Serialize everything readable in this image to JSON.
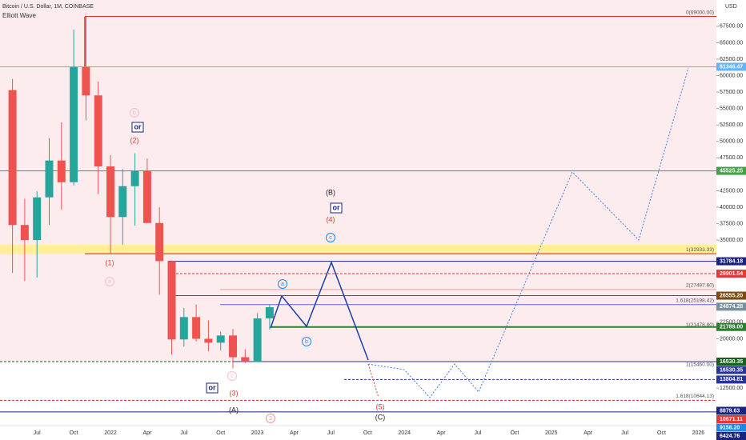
{
  "chart_data": {
    "type": "candlestick",
    "title": "Bitcoin / U.S. Dollar, 1M, COINBASE",
    "subtitle": "Elliott Wave",
    "y_unit": "USD",
    "up_color": "#26a69a",
    "down_color": "#ef5350",
    "categories": [
      null,
      null,
      "Jul",
      null,
      null,
      "Oct",
      null,
      null,
      "2022",
      null,
      null,
      "Apr",
      null,
      null,
      "Jul",
      null,
      null,
      "Oct",
      null,
      null,
      "2023",
      null,
      null,
      "Apr",
      null,
      null,
      "Jul",
      null,
      null,
      "Oct",
      null,
      null,
      "2024",
      null,
      null,
      "Apr",
      null,
      null,
      "Jul",
      null,
      null,
      "Oct",
      null,
      null,
      "2025",
      null,
      null,
      "Apr",
      null,
      null,
      "Jul",
      null,
      null,
      "Oct",
      null,
      null,
      "2026",
      null
    ],
    "open": [
      57800,
      37300,
      35000,
      41500,
      47100,
      43800,
      61300,
      57000,
      46200,
      38500,
      43200,
      45500,
      37600,
      31800,
      19900,
      23300,
      20000,
      19400,
      20500,
      17200,
      16500,
      23100,
      null,
      null,
      null,
      null,
      null,
      null,
      null,
      null,
      null,
      null,
      null,
      null,
      null,
      null,
      null,
      null,
      null,
      null,
      null,
      null,
      null,
      null,
      null,
      null,
      null,
      null,
      null,
      null,
      null,
      null,
      null,
      null,
      null,
      null,
      null,
      null
    ],
    "high": [
      59500,
      41300,
      42400,
      50500,
      52900,
      67000,
      69000,
      59100,
      47900,
      45800,
      48200,
      47400,
      40000,
      31900,
      24700,
      25200,
      22800,
      21100,
      21500,
      18400,
      23900,
      25200,
      null,
      null,
      null,
      null,
      null,
      null,
      null,
      null,
      null,
      null,
      null,
      null,
      null,
      null,
      null,
      null,
      null,
      null,
      null,
      null,
      null,
      null,
      null,
      null,
      null,
      null,
      null,
      null,
      null,
      null,
      null,
      null,
      null,
      null,
      null,
      null
    ],
    "low": [
      30000,
      28800,
      29300,
      37300,
      39600,
      43300,
      53200,
      42000,
      32900,
      34300,
      37200,
      37700,
      26700,
      17600,
      18800,
      19600,
      18100,
      18200,
      15500,
      16300,
      16500,
      21400,
      null,
      null,
      null,
      null,
      null,
      null,
      null,
      null,
      null,
      null,
      null,
      null,
      null,
      null,
      null,
      null,
      null,
      null,
      null,
      null,
      null,
      null,
      null,
      null,
      null,
      null,
      null,
      null,
      null,
      null,
      null,
      null,
      null,
      null,
      null,
      null
    ],
    "close": [
      37300,
      35000,
      41500,
      47100,
      43800,
      61300,
      57000,
      46200,
      38500,
      43200,
      45500,
      37600,
      31800,
      19900,
      23300,
      20000,
      19400,
      20500,
      17200,
      16500,
      23100,
      24800,
      null,
      null,
      null,
      null,
      null,
      null,
      null,
      null,
      null,
      null,
      null,
      null,
      null,
      null,
      null,
      null,
      null,
      null,
      null,
      null,
      null,
      null,
      null,
      null,
      null,
      null,
      null,
      null,
      null,
      null,
      null,
      null,
      null,
      null,
      null,
      null
    ],
    "ylim": [
      6800,
      71500
    ],
    "yticks": [
      {
        "value": 67500,
        "label": "67500.00"
      },
      {
        "value": 65000,
        "label": "65000.00"
      },
      {
        "value": 62500,
        "label": "62500.00"
      },
      {
        "value": 60000,
        "label": "60000.00"
      },
      {
        "value": 57500,
        "label": "57500.00"
      },
      {
        "value": 55000,
        "label": "55000.00"
      },
      {
        "value": 52500,
        "label": "52500.00"
      },
      {
        "value": 50000,
        "label": "50000.00"
      },
      {
        "value": 47500,
        "label": "47500.00"
      },
      {
        "value": 42500,
        "label": "42500.00"
      },
      {
        "value": 40000,
        "label": "40000.00"
      },
      {
        "value": 37500,
        "label": "37500.00"
      },
      {
        "value": 35000,
        "label": "35000.00"
      },
      {
        "value": 22500,
        "label": "22500.00"
      },
      {
        "value": 20000,
        "label": "20000.00"
      },
      {
        "value": 12500,
        "label": "12500.00"
      }
    ],
    "levels": [
      {
        "value": 69000,
        "color": "#d32f2f"
      },
      {
        "value": 61346.47,
        "label": "61346.47",
        "color": "#64b5f6"
      },
      {
        "value": 45525.25,
        "label": "45525.25",
        "color": "#43a047"
      },
      {
        "value": 32933.33,
        "color": "#c62828"
      },
      {
        "value": 31784.18,
        "label": "31784.18",
        "color": "#1a237e"
      },
      {
        "value": 29901.54,
        "label": "29901.54",
        "color": "#e53935",
        "dashed": true
      },
      {
        "value": 27497.6,
        "color": "#ef9a9a"
      },
      {
        "value": 26555.2,
        "label": "26555.20",
        "color": "#7b4a12"
      },
      {
        "value": 25198.42,
        "color": "#5c6bc0"
      },
      {
        "value": 24874.28,
        "label": "24874.28",
        "color": "#78909c"
      },
      {
        "value": 21789,
        "label": "21789.00",
        "color": "#2e7d32"
      },
      {
        "value": 16530.35,
        "label": "16530.35",
        "color": "#1b5e20",
        "dashed": true
      },
      {
        "value": 16530.35,
        "label": "16530.35",
        "color": "#283593"
      },
      {
        "value": 13804.81,
        "label": "13804.81",
        "color": "#283593",
        "dashed": true
      },
      {
        "value": 10644.13,
        "color": "#c62828",
        "dashed": true
      },
      {
        "value": 8879.63,
        "label": "8879.63",
        "color": "#1a237e"
      },
      {
        "value": 10671.11,
        "label": "10671.11",
        "color": "#e53935"
      },
      {
        "value": 9158.2,
        "label": "9158.20",
        "color": "#1e88e5"
      },
      {
        "value": 6424.76,
        "label": "6424.76",
        "color": "#1a237e"
      }
    ],
    "fib_labels": [
      {
        "text": "0(69000.00)",
        "value": 69000
      },
      {
        "text": "1(32933.33)",
        "value": 32933.33
      },
      {
        "text": "2(27497.60)",
        "value": 27497.6
      },
      {
        "text": "1.618(25198.42)",
        "value": 25198.42
      },
      {
        "text": "1(21478.80)",
        "value": 21478.8
      },
      {
        "text": "1(15460.00)",
        "value": 15460
      },
      {
        "text": "1.618(10644.13)",
        "value": 10644.13
      }
    ],
    "annotations": [
      {
        "text": "(1)",
        "color": "#e53935"
      },
      {
        "text": "a",
        "color": "#f8bbd0",
        "circled": true
      },
      {
        "text": "b",
        "color": "#f8bbd0",
        "circled": true
      },
      {
        "text": "or",
        "color": "#1a237e",
        "boxed": true
      },
      {
        "text": "(2)",
        "color": "#e53935"
      },
      {
        "text": "(B)",
        "color": "#222222"
      },
      {
        "text": "or",
        "color": "#1a237e",
        "boxed": true
      },
      {
        "text": "(4)",
        "color": "#e53935"
      },
      {
        "text": "c",
        "color": "#1e88e5",
        "circled": true
      },
      {
        "text": "a",
        "color": "#1e88e5",
        "circled": true
      },
      {
        "text": "b",
        "color": "#1e88e5",
        "circled": true
      },
      {
        "text": "c",
        "color": "#f8bbd0",
        "circled": true
      },
      {
        "text": "or",
        "color": "#1a237e",
        "boxed": true
      },
      {
        "text": "(3)",
        "color": "#e53935"
      },
      {
        "text": "(A)",
        "color": "#222222"
      },
      {
        "text": "3",
        "color": "#ef9a9a",
        "circled": true
      },
      {
        "text": "(5)",
        "color": "#e53935"
      },
      {
        "text": "(C)",
        "color": "#222222"
      }
    ]
  }
}
